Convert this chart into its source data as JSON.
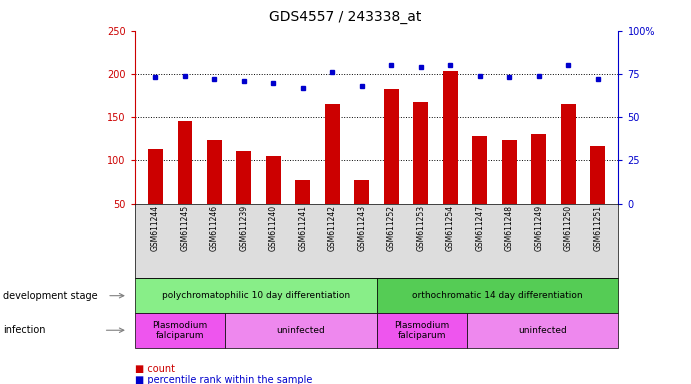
{
  "title": "GDS4557 / 243338_at",
  "samples": [
    "GSM611244",
    "GSM611245",
    "GSM611246",
    "GSM611239",
    "GSM611240",
    "GSM611241",
    "GSM611242",
    "GSM611243",
    "GSM611252",
    "GSM611253",
    "GSM611254",
    "GSM611247",
    "GSM611248",
    "GSM611249",
    "GSM611250",
    "GSM611251"
  ],
  "count_values": [
    113,
    145,
    123,
    111,
    105,
    77,
    165,
    77,
    182,
    168,
    203,
    128,
    124,
    130,
    165,
    116
  ],
  "percentile_values": [
    73,
    74,
    72,
    71,
    70,
    67,
    76,
    68,
    80,
    79,
    80,
    74,
    73,
    74,
    80,
    72
  ],
  "bar_color": "#cc0000",
  "dot_color": "#0000cc",
  "ylim_left": [
    50,
    250
  ],
  "ylim_right": [
    0,
    100
  ],
  "yticks_left": [
    50,
    100,
    150,
    200,
    250
  ],
  "yticks_right": [
    0,
    25,
    50,
    75,
    100
  ],
  "grid_values": [
    100,
    150,
    200
  ],
  "dev_stage_groups": [
    {
      "label": "polychromatophilic 10 day differentiation",
      "start": 0,
      "end": 7,
      "color": "#88ee88"
    },
    {
      "label": "orthochromatic 14 day differentiation",
      "start": 8,
      "end": 15,
      "color": "#55cc55"
    }
  ],
  "infection_groups": [
    {
      "label": "Plasmodium\nfalciparum",
      "start": 0,
      "end": 2,
      "color": "#ee55ee"
    },
    {
      "label": "uninfected",
      "start": 3,
      "end": 7,
      "color": "#ee88ee"
    },
    {
      "label": "Plasmodium\nfalciparum",
      "start": 8,
      "end": 10,
      "color": "#ee55ee"
    },
    {
      "label": "uninfected",
      "start": 11,
      "end": 15,
      "color": "#ee88ee"
    }
  ],
  "legend_items": [
    {
      "label": "count",
      "color": "#cc0000"
    },
    {
      "label": "percentile rank within the sample",
      "color": "#0000cc"
    }
  ],
  "dev_stage_label": "development stage",
  "infection_label": "infection",
  "background_color": "#ffffff",
  "tick_color_left": "#cc0000",
  "tick_color_right": "#0000cc",
  "xticklabel_bg": "#dddddd",
  "title_fontsize": 10,
  "axis_fontsize": 7,
  "label_fontsize": 8
}
